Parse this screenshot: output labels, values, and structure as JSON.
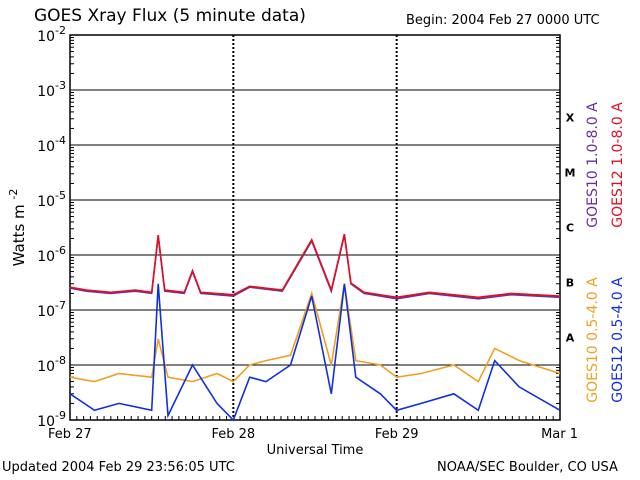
{
  "header": {
    "title": "GOES Xray Flux (5 minute data)",
    "begin": "Begin:  2004 Feb 27 0000 UTC"
  },
  "footer": {
    "updated": "Updated 2004 Feb 29 23:56:05 UTC",
    "credit": "NOAA/SEC Boulder, CO USA"
  },
  "chart_data": {
    "type": "line",
    "title": "GOES Xray Flux (5 minute data)",
    "xlabel": "Universal Time",
    "ylabel": "Watts m",
    "ylabel_exponent": "-2",
    "y_scale": "log",
    "ylim": [
      1e-09,
      0.01
    ],
    "y_ticks": [
      {
        "base": "10",
        "exp": "-2"
      },
      {
        "base": "10",
        "exp": "-3"
      },
      {
        "base": "10",
        "exp": "-4"
      },
      {
        "base": "10",
        "exp": "-5"
      },
      {
        "base": "10",
        "exp": "-6"
      },
      {
        "base": "10",
        "exp": "-7"
      },
      {
        "base": "10",
        "exp": "-8"
      },
      {
        "base": "10",
        "exp": "-9"
      }
    ],
    "x_ticks": [
      "Feb 27",
      "Feb 28",
      "Feb 29",
      "Mar 1"
    ],
    "xlim_days": [
      0,
      3
    ],
    "flare_classes": [
      "X",
      "M",
      "C",
      "B",
      "A"
    ],
    "grid": true,
    "colors": {
      "goes10_long": "#6a2ea0",
      "goes12_long": "#e01020",
      "goes10_short": "#f0a020",
      "goes12_short": "#1030e0"
    },
    "series": [
      {
        "name": "GOES10 1.0-8.0 A",
        "color": "#6a2ea0",
        "kind": "long",
        "x_days": [
          0.0,
          0.1,
          0.25,
          0.4,
          0.5,
          0.54,
          0.58,
          0.7,
          0.75,
          0.8,
          1.0,
          1.1,
          1.3,
          1.48,
          1.6,
          1.68,
          1.72,
          1.8,
          2.0,
          2.2,
          2.5,
          2.7,
          3.0
        ],
        "values": [
          2.5e-07,
          2.2e-07,
          2e-07,
          2.2e-07,
          2e-07,
          2.2e-06,
          2.2e-07,
          2e-07,
          5e-07,
          2e-07,
          1.8e-07,
          2.6e-07,
          2.2e-07,
          1.8e-06,
          2.2e-07,
          2.3e-06,
          3e-07,
          2e-07,
          1.6e-07,
          2e-07,
          1.6e-07,
          1.9e-07,
          1.7e-07
        ]
      },
      {
        "name": "GOES12 1.0-8.0 A",
        "color": "#e01020",
        "kind": "long",
        "x_days": [
          0.0,
          0.1,
          0.25,
          0.4,
          0.5,
          0.54,
          0.58,
          0.7,
          0.75,
          0.8,
          1.0,
          1.1,
          1.3,
          1.48,
          1.6,
          1.68,
          1.72,
          1.8,
          2.0,
          2.2,
          2.5,
          2.7,
          3.0
        ],
        "values": [
          2.6e-07,
          2.3e-07,
          2.1e-07,
          2.3e-07,
          2.1e-07,
          2.3e-06,
          2.3e-07,
          2.1e-07,
          5.2e-07,
          2.1e-07,
          1.9e-07,
          2.7e-07,
          2.3e-07,
          1.9e-06,
          2.3e-07,
          2.4e-06,
          3.1e-07,
          2.1e-07,
          1.7e-07,
          2.1e-07,
          1.7e-07,
          2e-07,
          1.8e-07
        ]
      },
      {
        "name": "GOES10 0.5-4.0 A",
        "color": "#f0a020",
        "kind": "short",
        "x_days": [
          0.0,
          0.15,
          0.3,
          0.5,
          0.54,
          0.6,
          0.75,
          0.9,
          1.0,
          1.1,
          1.2,
          1.35,
          1.48,
          1.6,
          1.68,
          1.75,
          1.9,
          2.0,
          2.15,
          2.35,
          2.5,
          2.6,
          2.75,
          3.0
        ],
        "values": [
          6e-09,
          5e-09,
          7e-09,
          6e-09,
          3e-08,
          6e-09,
          5e-09,
          7e-09,
          5e-09,
          1e-08,
          1.2e-08,
          1.5e-08,
          2e-07,
          1e-08,
          3e-07,
          1.2e-08,
          1e-08,
          6e-09,
          7e-09,
          1e-08,
          5e-09,
          2e-08,
          1.2e-08,
          7e-09
        ]
      },
      {
        "name": "GOES12 0.5-4.0 A",
        "color": "#1030e0",
        "kind": "short",
        "x_days": [
          0.0,
          0.15,
          0.3,
          0.5,
          0.54,
          0.6,
          0.75,
          0.9,
          1.0,
          1.1,
          1.2,
          1.35,
          1.48,
          1.6,
          1.68,
          1.75,
          1.9,
          2.0,
          2.15,
          2.35,
          2.5,
          2.6,
          2.75,
          3.0
        ],
        "values": [
          3e-09,
          1.5e-09,
          2e-09,
          1.5e-09,
          3e-07,
          1.2e-09,
          1e-08,
          2e-09,
          1e-09,
          6e-09,
          5e-09,
          1e-08,
          1.8e-07,
          3e-09,
          3e-07,
          6e-09,
          3e-09,
          1.5e-09,
          2e-09,
          3e-09,
          1.5e-09,
          1.2e-08,
          4e-09,
          1.5e-09
        ]
      }
    ]
  }
}
